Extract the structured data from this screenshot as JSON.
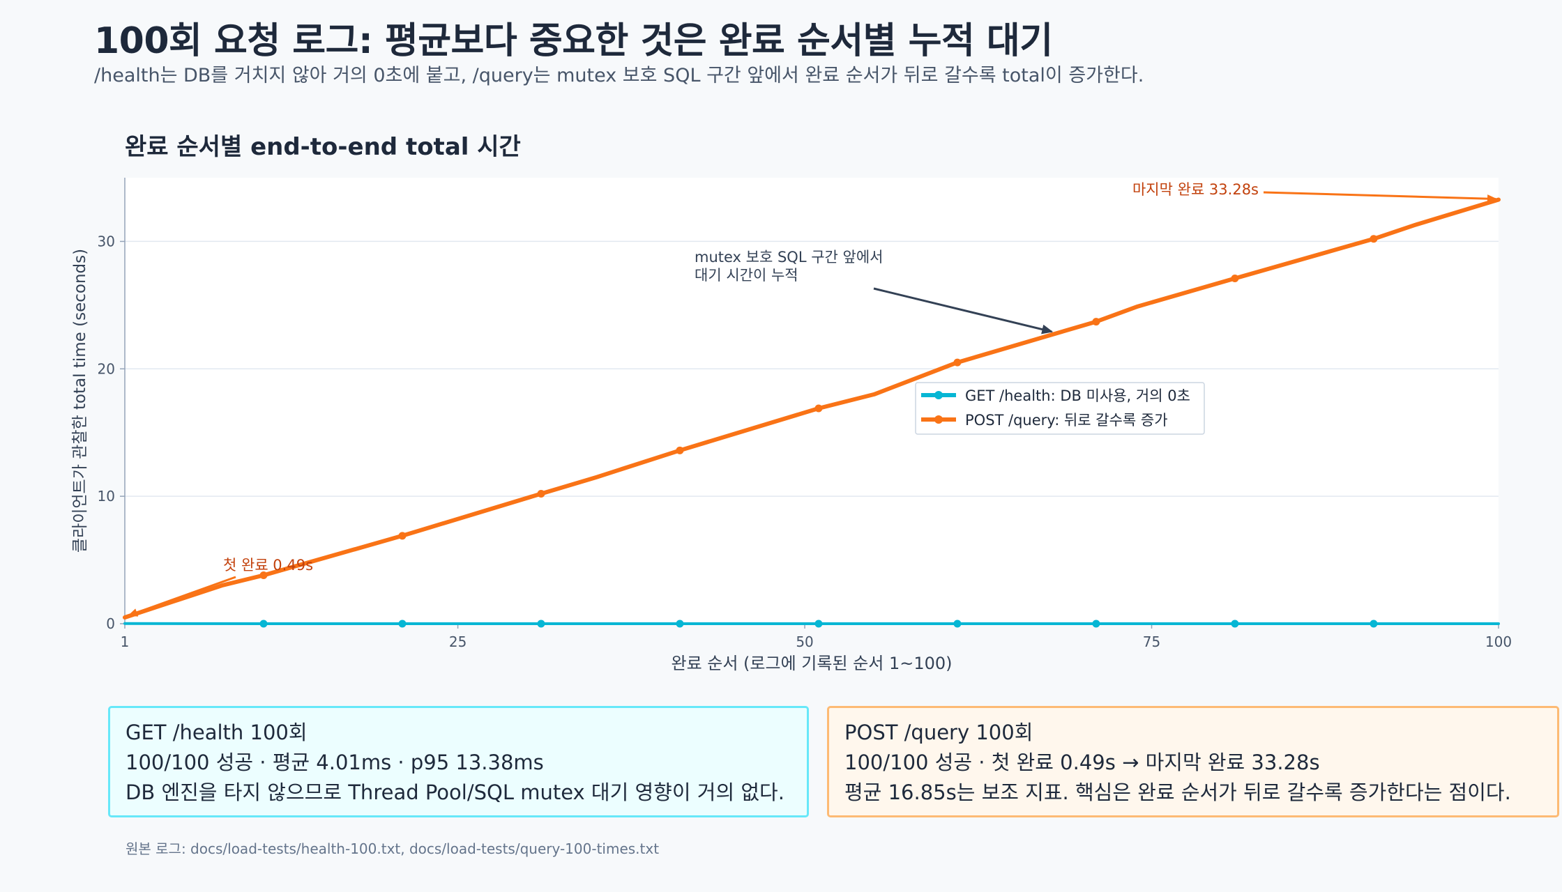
{
  "header": {
    "title": "100회 요청 로그: 평균보다 중요한 것은 완료 순서별 누적 대기",
    "subtitle": "/health는 DB를 거치지 않아 거의 0초에 붙고, /query는 mutex 보호 SQL 구간 앞에서 완료 순서가 뒤로 갈수록 total이 증가한다."
  },
  "chart_data": {
    "type": "line",
    "title": "완료 순서별 end-to-end total 시간",
    "xlabel": "완료 순서 (로그에 기록된 순서 1~100)",
    "ylabel": "클라이언트가 관찰한 total time (seconds)",
    "xlim": [
      1,
      100
    ],
    "ylim": [
      0,
      35
    ],
    "x_ticks": [
      1,
      25,
      50,
      75,
      100
    ],
    "y_ticks": [
      0,
      10,
      20,
      30
    ],
    "grid": "horizontal",
    "legend_position": "center-right",
    "series": [
      {
        "name": "GET /health: DB 미사용, 거의 0초",
        "color": "#06b6d4",
        "x": [
          1,
          11,
          21,
          31,
          41,
          51,
          61,
          71,
          81,
          91,
          100
        ],
        "y": [
          0.01,
          0.0,
          0.0,
          0.0,
          0.0,
          0.0,
          0.0,
          0.0,
          0.0,
          0.0,
          0.0
        ],
        "marker_indices": [
          1,
          2,
          3,
          4,
          5,
          6,
          7,
          8,
          9
        ]
      },
      {
        "name": "POST /query: 뒤로 갈수록 증가",
        "color": "#f97316",
        "x": [
          1,
          8,
          11,
          21,
          31,
          35,
          41,
          51,
          55,
          61,
          71,
          74,
          81,
          91,
          94,
          100
        ],
        "y": [
          0.49,
          3.0,
          3.8,
          6.9,
          10.2,
          11.5,
          13.6,
          16.9,
          18.0,
          20.5,
          23.7,
          24.9,
          27.1,
          30.2,
          31.3,
          33.28
        ],
        "marker_indices": [
          2,
          3,
          4,
          6,
          7,
          9,
          10,
          12,
          13
        ]
      }
    ],
    "annotations": [
      {
        "text": "첫 완료 0.49s",
        "color": "#c2410c",
        "point": [
          1,
          0.49
        ]
      },
      {
        "text": "마지막 완료 33.28s",
        "color": "#c2410c",
        "point": [
          100,
          33.28
        ]
      },
      {
        "lines": [
          "mutex 보호 SQL 구간 앞에서",
          "대기 시간이 누적"
        ],
        "color": "#334155",
        "point": [
          67.5,
          22.7
        ]
      }
    ]
  },
  "cards": {
    "health": {
      "line1": "GET /health 100회",
      "line2": "100/100 성공 · 평균 4.01ms · p95 13.38ms",
      "line3": "DB 엔진을 타지 않으므로 Thread Pool/SQL mutex 대기 영향이 거의 없다."
    },
    "query": {
      "line1": "POST /query 100회",
      "line2": "100/100 성공 · 첫 완료 0.49s → 마지막 완료 33.28s",
      "line3": "평균 16.85s는 보조 지표. 핵심은 완료 순서가 뒤로 갈수록 증가한다는 점이다."
    }
  },
  "footer": {
    "source": "원본 로그: docs/load-tests/health-100.txt, docs/load-tests/query-100-times.txt"
  }
}
